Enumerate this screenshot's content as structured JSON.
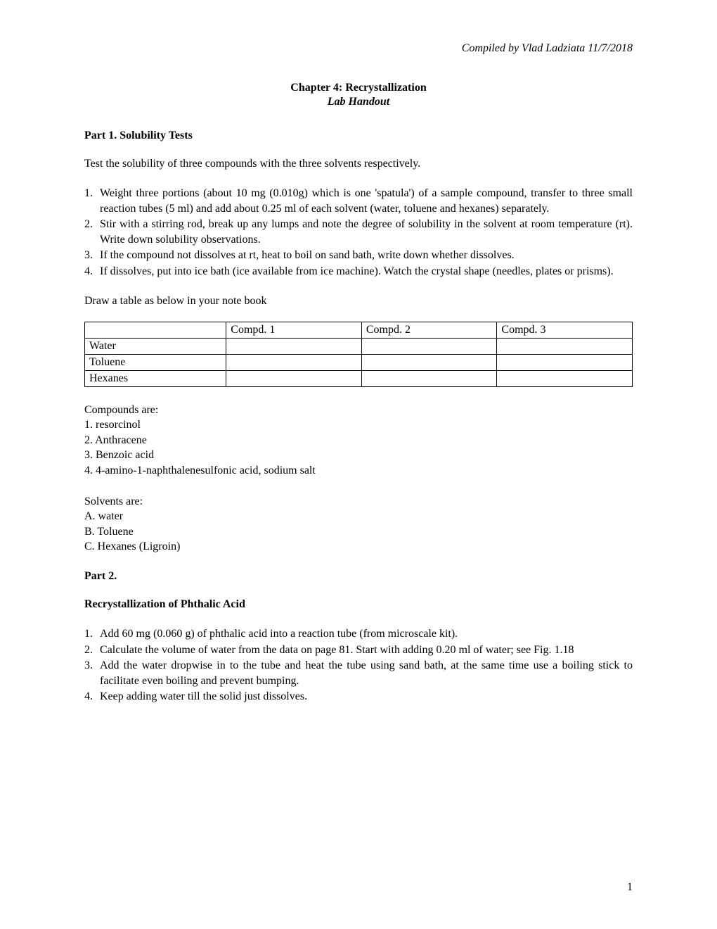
{
  "header": {
    "note": "Compiled by Vlad Ladziata 11/7/2018"
  },
  "title": {
    "chapter": "Chapter 4: Recrystallization",
    "subtitle": "Lab Handout"
  },
  "part1": {
    "heading": "Part 1. Solubility Tests",
    "intro": "Test the solubility of three compounds with the three solvents respectively.",
    "steps": [
      {
        "n": "1.",
        "t": "Weight three portions (about 10 mg (0.010g) which is one 'spatula') of a sample compound, transfer to three small reaction tubes (5 ml) and add about 0.25 ml of each solvent (water, toluene and hexanes) separately."
      },
      {
        "n": "2.",
        "t": "Stir with a stirring rod, break up any lumps and note the degree of solubility in the solvent at room temperature (rt). Write down solubility observations."
      },
      {
        "n": "3.",
        "t": "If the compound not dissolves at rt, heat to boil on sand bath, write down whether dissolves."
      },
      {
        "n": "4.",
        "t": "If dissolves, put into ice bath (ice available from ice machine). Watch the crystal shape (needles, plates or prisms)."
      }
    ],
    "table_intro": "Draw a table as below in your note book",
    "table": {
      "headers": [
        "",
        "Compd. 1",
        "Compd. 2",
        "Compd. 3"
      ],
      "rows": [
        [
          "Water",
          "",
          "",
          ""
        ],
        [
          "Toluene",
          "",
          "",
          ""
        ],
        [
          "Hexanes",
          "",
          "",
          ""
        ]
      ]
    },
    "compounds": {
      "lead": "Compounds are:",
      "items": [
        "1. resorcinol",
        "2. Anthracene",
        "3. Benzoic acid",
        "4. 4-amino-1-naphthalenesulfonic acid, sodium salt"
      ]
    },
    "solvents": {
      "lead": "Solvents are:",
      "items": [
        "A. water",
        "B. Toluene",
        "C. Hexanes (Ligroin)"
      ]
    }
  },
  "part2": {
    "heading": "Part 2.",
    "subheading": "Recrystallization of Phthalic Acid",
    "steps": [
      {
        "n": "1.",
        "t": "Add 60 mg (0.060 g) of phthalic acid into a reaction tube (from microscale kit)."
      },
      {
        "n": "2.",
        "t": "Calculate the volume of water from the data on page 81. Start with adding 0.20 ml of water; see Fig. 1.18"
      },
      {
        "n": "3.",
        "t": "Add the water dropwise in to the tube and heat the tube using sand bath, at the same time use a boiling stick to facilitate even boiling and prevent bumping."
      },
      {
        "n": "4.",
        "t": "Keep adding water till the solid just dissolves."
      }
    ]
  },
  "page_number": "1"
}
